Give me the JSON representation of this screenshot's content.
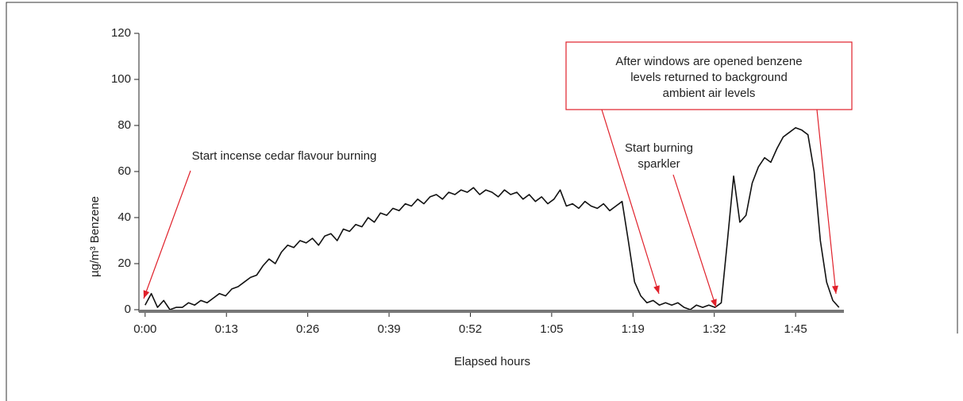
{
  "chart_data": {
    "type": "line",
    "x_label": "Elapsed hours",
    "y_label": "µg/m³ Benzene",
    "x": [
      0,
      1,
      2,
      3,
      4,
      5,
      6,
      7,
      8,
      9,
      10,
      11,
      12,
      13,
      14,
      15,
      16,
      17,
      18,
      19,
      20,
      21,
      22,
      23,
      24,
      25,
      26,
      27,
      28,
      29,
      30,
      31,
      32,
      33,
      34,
      35,
      36,
      37,
      38,
      39,
      40,
      41,
      42,
      43,
      44,
      45,
      46,
      47,
      48,
      49,
      50,
      51,
      52,
      53,
      54,
      55,
      56,
      57,
      58,
      59,
      60,
      61,
      62,
      63,
      64,
      65,
      66,
      67,
      68,
      69,
      70,
      71,
      72,
      73,
      74,
      75,
      76,
      77,
      78,
      79,
      80,
      81,
      82,
      83,
      84,
      85,
      86,
      87,
      88,
      89,
      90,
      91,
      92,
      93,
      94,
      95,
      96,
      97,
      98,
      99,
      100,
      101,
      102,
      103,
      104,
      105,
      106,
      107,
      108,
      109,
      110,
      111,
      112
    ],
    "values": [
      2,
      7,
      1,
      4,
      0,
      1,
      1,
      3,
      2,
      4,
      3,
      5,
      7,
      6,
      9,
      10,
      12,
      14,
      15,
      19,
      22,
      20,
      25,
      28,
      27,
      30,
      29,
      31,
      28,
      32,
      33,
      30,
      35,
      34,
      37,
      36,
      40,
      38,
      42,
      41,
      44,
      43,
      46,
      45,
      48,
      46,
      49,
      50,
      48,
      51,
      50,
      52,
      51,
      53,
      50,
      52,
      51,
      49,
      52,
      50,
      51,
      48,
      50,
      47,
      49,
      46,
      48,
      52,
      45,
      46,
      44,
      47,
      45,
      44,
      46,
      43,
      45,
      47,
      30,
      12,
      6,
      3,
      4,
      2,
      3,
      2,
      3,
      1,
      0,
      2,
      1,
      2,
      1,
      3,
      30,
      58,
      38,
      41,
      55,
      62,
      66,
      64,
      70,
      75,
      77,
      79,
      78,
      76,
      60,
      30,
      12,
      4,
      1
    ],
    "color": "#111111",
    "xlim": [
      -1,
      112.8
    ],
    "ylim": [
      0,
      120
    ],
    "xticks": [
      {
        "value": 0,
        "label": "0:00"
      },
      {
        "value": 13.125,
        "label": "0:13"
      },
      {
        "value": 26.25,
        "label": "0:26"
      },
      {
        "value": 39.375,
        "label": "0:39"
      },
      {
        "value": 52.5,
        "label": "0:52"
      },
      {
        "value": 65.625,
        "label": "1:05"
      },
      {
        "value": 78.75,
        "label": "1:19"
      },
      {
        "value": 91.875,
        "label": "1:32"
      },
      {
        "value": 105,
        "label": "1:45"
      }
    ],
    "yticks": [
      0,
      20,
      40,
      60,
      80,
      100,
      120
    ],
    "annotations": [
      {
        "lines": [
          "Start incense cedar flavour burning"
        ]
      },
      {
        "lines": [
          "Start burning",
          "sparkler"
        ]
      },
      {
        "lines": [
          "After windows are opened benzene",
          "levels returned to background",
          "ambient air levels"
        ]
      }
    ]
  }
}
